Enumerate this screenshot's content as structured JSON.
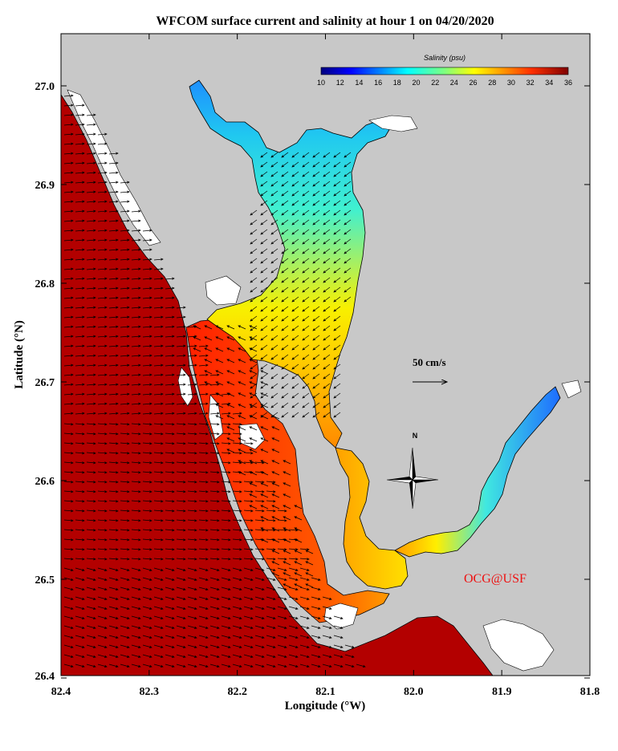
{
  "title": "WFCOM surface current and salinity at hour 1 on 04/20/2020",
  "x_axis": {
    "label": "Longitude (°W)",
    "ticks": [
      "82.4",
      "82.3",
      "82.2",
      "82.1",
      "82.0",
      "81.9",
      "81.8"
    ]
  },
  "y_axis": {
    "label": "Latitude (°N)",
    "ticks": [
      "27.0",
      "26.9",
      "26.8",
      "26.7",
      "26.6",
      "26.5",
      "26.4"
    ]
  },
  "colorbar": {
    "title": "Salinity (psu)",
    "ticks": [
      "10",
      "12",
      "14",
      "16",
      "18",
      "20",
      "22",
      "24",
      "26",
      "28",
      "30",
      "32",
      "34",
      "36"
    ],
    "range": [
      10,
      36
    ]
  },
  "scale_arrow_label": "50 cm/s",
  "compass_label": "N",
  "credit": "OCG@USF",
  "colors": {
    "land": "#c8c8c8",
    "coastline": "#000000",
    "salinity_high": "#b20000",
    "salinity_low": "#00007f",
    "credit": "#ee1111"
  }
}
